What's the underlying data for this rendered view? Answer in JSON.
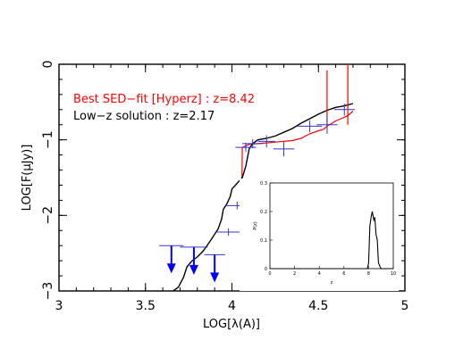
{
  "chart_data": [
    {
      "type": "line",
      "title": "",
      "xlabel": "LOG[λ(A)]",
      "ylabel": "LOG[F(μJy)]",
      "xlim": [
        3,
        5
      ],
      "ylim": [
        -3,
        0
      ],
      "xticks": [
        3,
        3.5,
        4,
        4.5,
        5
      ],
      "xtick_labels": [
        "3",
        "3.5",
        "4",
        "4.5",
        "5"
      ],
      "yticks": [
        0,
        -1,
        -2,
        -3
      ],
      "ytick_labels": [
        "0",
        "−1",
        "−2",
        "−3"
      ],
      "grid": false,
      "legend": [
        {
          "label": "Best SED−fit [Hyperz]     : z=8.42",
          "color": "#ff0000"
        },
        {
          "label": "Low−z solution : z=2.17",
          "color": "#000000"
        }
      ],
      "series": [
        {
          "color": "#000000",
          "x": [
            3.66,
            3.69,
            3.72,
            3.74,
            3.77,
            3.8,
            3.83,
            3.85,
            3.88,
            3.9,
            3.92,
            3.94,
            3.95,
            3.97,
            3.99,
            4.0,
            4.02,
            4.04,
            4.06,
            4.08,
            4.1,
            4.12,
            4.15,
            4.2,
            4.25,
            4.3,
            4.35,
            4.4,
            4.45,
            4.5,
            4.55,
            4.6,
            4.65,
            4.7
          ],
          "y": [
            -3.0,
            -2.95,
            -2.82,
            -2.68,
            -2.6,
            -2.55,
            -2.48,
            -2.42,
            -2.32,
            -2.25,
            -2.18,
            -2.05,
            -1.92,
            -1.85,
            -1.75,
            -1.65,
            -1.6,
            -1.55,
            -1.5,
            -1.35,
            -1.12,
            -1.05,
            -1.0,
            -0.98,
            -0.95,
            -0.9,
            -0.85,
            -0.78,
            -0.72,
            -0.66,
            -0.61,
            -0.57,
            -0.55,
            -0.52
          ]
        },
        {
          "color": "#ff0000",
          "x": [
            4.05,
            4.06,
            4.08,
            4.1,
            4.15,
            4.2,
            4.25,
            4.3,
            4.35,
            4.4,
            4.45,
            4.5,
            4.53,
            4.55,
            4.58,
            4.6,
            4.63,
            4.65,
            4.67,
            4.7
          ],
          "y": [
            -3.0,
            -1.1,
            -1.08,
            -1.06,
            -1.05,
            -1.04,
            -1.03,
            -1.02,
            -1.01,
            -0.98,
            -0.92,
            -0.88,
            -0.86,
            -0.82,
            -0.78,
            -0.75,
            -0.72,
            -0.7,
            -0.68,
            -0.62
          ]
        }
      ],
      "spikes": [
        {
          "x": 4.55,
          "y": -0.08
        },
        {
          "x": 4.67,
          "y": 0.0
        }
      ],
      "points": {
        "color": "#3333cc",
        "detections": [
          {
            "x": 4.08,
            "y": -1.1,
            "xerr": 0.06,
            "yerr": 0.06
          },
          {
            "x": 4.12,
            "y": -1.05,
            "xerr": 0.06,
            "yerr": 0.06
          },
          {
            "x": 4.2,
            "y": -1.02,
            "xerr": 0.05,
            "yerr": 0.08
          },
          {
            "x": 4.3,
            "y": -1.12,
            "xerr": 0.06,
            "yerr": 0.1
          },
          {
            "x": 4.45,
            "y": -0.82,
            "xerr": 0.07,
            "yerr": 0.08
          },
          {
            "x": 4.55,
            "y": -0.8,
            "xerr": 0.06,
            "yerr": 0.12
          },
          {
            "x": 4.65,
            "y": -0.6,
            "xerr": 0.06,
            "yerr": 0.08
          },
          {
            "x": 4.03,
            "y": -1.87,
            "xerr": 0.06,
            "yerr": 0.05
          },
          {
            "x": 3.98,
            "y": -2.22,
            "xerr": 0.07,
            "yerr": 0.05
          }
        ],
        "upper_limits": [
          {
            "x": 3.65,
            "y": -2.4,
            "xerr": 0.07
          },
          {
            "x": 3.78,
            "y": -2.42,
            "xerr": 0.08
          },
          {
            "x": 3.9,
            "y": -2.52,
            "xerr": 0.06
          }
        ]
      }
    },
    {
      "type": "line",
      "title": "",
      "xlabel": "z",
      "ylabel": "P(z)",
      "xlim": [
        0,
        10
      ],
      "ylim": [
        0,
        0.3
      ],
      "xticks": [
        0,
        2,
        4,
        6,
        8,
        10
      ],
      "xtick_labels": [
        "0",
        "2",
        "4",
        "6",
        "8",
        "10"
      ],
      "yticks": [
        0,
        0.1,
        0.2,
        0.3
      ],
      "ytick_labels": [
        "0",
        "0.1",
        "0.2",
        "0.3"
      ],
      "series": [
        {
          "color": "#000000",
          "x": [
            0,
            7.9,
            8.0,
            8.1,
            8.2,
            8.3,
            8.42,
            8.5,
            8.6,
            8.7,
            8.8,
            9.0,
            10
          ],
          "y": [
            0,
            0,
            0.02,
            0.15,
            0.18,
            0.2,
            0.17,
            0.18,
            0.12,
            0.1,
            0.02,
            0,
            0
          ]
        }
      ]
    }
  ]
}
